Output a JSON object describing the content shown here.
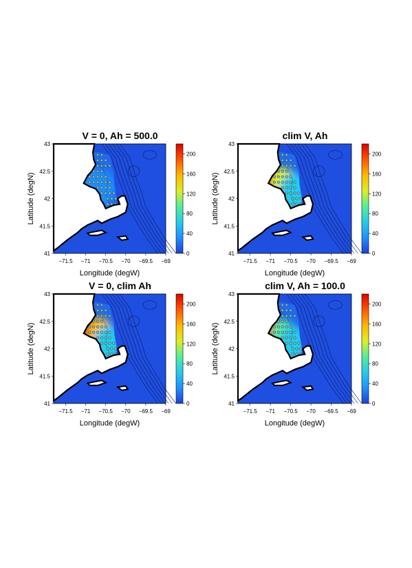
{
  "chart_data": [
    {
      "type": "heatmap",
      "title": "V = 0,  Ah = 500.0",
      "xlabel": "Longitude (degW)",
      "ylabel": "Latitude (degN)",
      "xlim": [
        -71.8,
        -69.0
      ],
      "ylim": [
        41.0,
        43.0
      ],
      "xticks": [
        "−71.5",
        "−71",
        "−70.5",
        "−70",
        "−69.5",
        "−69"
      ],
      "yticks": [
        "41",
        "41.5",
        "42",
        "42.5",
        "43"
      ],
      "colorbar": {
        "min": 0,
        "max": 220,
        "ticks": [
          "0",
          "40",
          "80",
          "120",
          "160",
          "200"
        ]
      },
      "hotspots": [
        {
          "lon": -70.9,
          "lat": 42.35,
          "value": 40,
          "radius": 0.25
        },
        {
          "lon": -70.6,
          "lat": 42.2,
          "value": 32,
          "radius": 0.35
        }
      ]
    },
    {
      "type": "heatmap",
      "title": "clim V,  Ah",
      "xlabel": "Longitude (degW)",
      "ylabel": "Latitude (degN)",
      "xlim": [
        -71.8,
        -69.0
      ],
      "ylim": [
        41.0,
        43.0
      ],
      "xticks": [
        "−71.5",
        "−71",
        "−70.5",
        "−70",
        "−69.5",
        "−69"
      ],
      "yticks": [
        "41",
        "41.5",
        "42",
        "42.5",
        "43"
      ],
      "colorbar": {
        "min": 0,
        "max": 220,
        "ticks": [
          "0",
          "40",
          "80",
          "120",
          "160",
          "200"
        ]
      },
      "hotspots": [
        {
          "lon": -70.97,
          "lat": 42.35,
          "value": 230,
          "radius": 0.22
        },
        {
          "lon": -70.7,
          "lat": 42.3,
          "value": 110,
          "radius": 0.3
        },
        {
          "lon": -70.4,
          "lat": 42.1,
          "value": 60,
          "radius": 0.4
        }
      ]
    },
    {
      "type": "heatmap",
      "title": "V = 0,  clim Ah",
      "xlabel": "Longitude (degW)",
      "ylabel": "Latitude (degN)",
      "xlim": [
        -71.8,
        -69.0
      ],
      "ylim": [
        41.0,
        43.0
      ],
      "xticks": [
        "−71.5",
        "−71",
        "−70.5",
        "−70",
        "−69.5",
        "−69"
      ],
      "yticks": [
        "41",
        "41.5",
        "42",
        "42.5",
        "43"
      ],
      "colorbar": {
        "min": 0,
        "max": 220,
        "ticks": [
          "0",
          "40",
          "80",
          "120",
          "160",
          "200"
        ]
      },
      "hotspots": [
        {
          "lon": -70.97,
          "lat": 42.35,
          "value": 230,
          "radius": 0.26
        },
        {
          "lon": -70.65,
          "lat": 42.3,
          "value": 140,
          "radius": 0.3
        },
        {
          "lon": -70.45,
          "lat": 42.1,
          "value": 70,
          "radius": 0.35
        }
      ]
    },
    {
      "type": "heatmap",
      "title": "clim V,  Ah = 100.0",
      "xlabel": "Longitude (degW)",
      "ylabel": "Latitude (degN)",
      "xlim": [
        -71.8,
        -69.0
      ],
      "ylim": [
        41.0,
        43.0
      ],
      "xticks": [
        "−71.5",
        "−71",
        "−70.5",
        "−70",
        "−69.5",
        "−69"
      ],
      "yticks": [
        "41",
        "41.5",
        "42",
        "42.5",
        "43"
      ],
      "colorbar": {
        "min": 0,
        "max": 220,
        "ticks": [
          "0",
          "40",
          "80",
          "120",
          "160",
          "200"
        ]
      },
      "hotspots": [
        {
          "lon": -70.97,
          "lat": 42.35,
          "value": 220,
          "radius": 0.2
        },
        {
          "lon": -70.7,
          "lat": 42.28,
          "value": 100,
          "radius": 0.28
        },
        {
          "lon": -70.45,
          "lat": 42.1,
          "value": 55,
          "radius": 0.35
        }
      ]
    }
  ],
  "colors": {
    "ocean": "#1f4fe0",
    "land": "#ffffff",
    "colormap": [
      "#1f3fd8",
      "#1f8fff",
      "#22ccee",
      "#55ee99",
      "#ddee22",
      "#ffbb00",
      "#ff5500",
      "#dd0000"
    ]
  }
}
